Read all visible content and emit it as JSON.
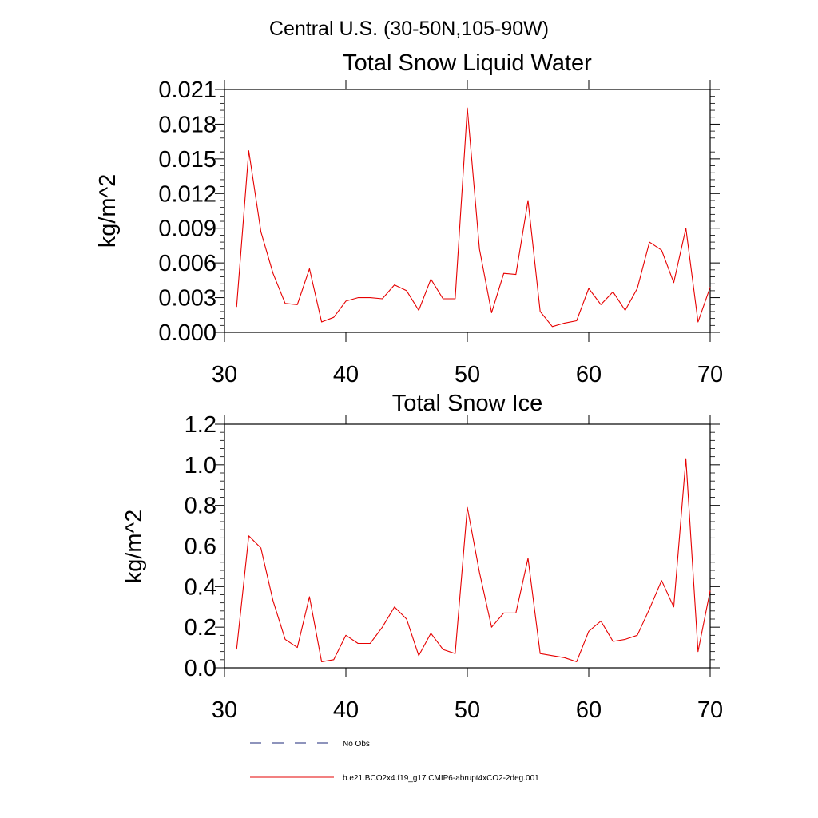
{
  "figure_title": "Central U.S. (30-50N,105-90W)",
  "legend": [
    {
      "label": "No Obs",
      "color": "#1e2a78",
      "dash": "dashed"
    },
    {
      "label": "b.e21.BCO2x4.f19_g17.CMIP6-abrupt4xCO2-2deg.001",
      "color": "#e60000",
      "dash": "solid"
    }
  ],
  "chart_data": [
    {
      "type": "line",
      "title": "Total Snow Liquid Water",
      "xlabel": "",
      "ylabel": "kg/m^2",
      "xlim": [
        30,
        70
      ],
      "ylim": [
        0,
        0.021
      ],
      "xticks": [
        "30",
        "40",
        "50",
        "60",
        "70"
      ],
      "xtick_values": [
        30,
        40,
        50,
        60,
        70
      ],
      "yticks": [
        "0.000",
        "0.003",
        "0.006",
        "0.009",
        "0.012",
        "0.015",
        "0.018",
        "0.021"
      ],
      "ytick_values": [
        0,
        0.003,
        0.006,
        0.009,
        0.012,
        0.015,
        0.018,
        0.021
      ],
      "series": [
        {
          "name": "b.e21.BCO2x4.f19_g17.CMIP6-abrupt4xCO2-2deg.001",
          "color": "#e60000",
          "x": [
            31,
            32,
            33,
            34,
            35,
            36,
            37,
            38,
            39,
            40,
            41,
            42,
            43,
            44,
            45,
            46,
            47,
            48,
            49,
            50,
            51,
            52,
            53,
            54,
            55,
            56,
            57,
            58,
            59,
            60,
            61,
            62,
            63,
            64,
            65,
            66,
            67,
            68,
            69,
            70
          ],
          "values": [
            0.0022,
            0.0157,
            0.0087,
            0.0051,
            0.0025,
            0.0024,
            0.0055,
            0.0009,
            0.0013,
            0.0027,
            0.003,
            0.003,
            0.0029,
            0.0041,
            0.0036,
            0.0019,
            0.0046,
            0.0029,
            0.0029,
            0.0194,
            0.0072,
            0.0017,
            0.0051,
            0.005,
            0.0114,
            0.0018,
            0.0005,
            0.0008,
            0.001,
            0.0038,
            0.0024,
            0.0035,
            0.0019,
            0.0038,
            0.0078,
            0.0071,
            0.0043,
            0.009,
            0.0009,
            0.0039
          ]
        }
      ]
    },
    {
      "type": "line",
      "title": "Total Snow Ice",
      "xlabel": "",
      "ylabel": "kg/m^2",
      "xlim": [
        30,
        70
      ],
      "ylim": [
        0,
        1.2
      ],
      "xticks": [
        "30",
        "40",
        "50",
        "60",
        "70"
      ],
      "xtick_values": [
        30,
        40,
        50,
        60,
        70
      ],
      "yticks": [
        "0.0",
        "0.2",
        "0.4",
        "0.6",
        "0.8",
        "1.0",
        "1.2"
      ],
      "ytick_values": [
        0,
        0.2,
        0.4,
        0.6,
        0.8,
        1.0,
        1.2
      ],
      "series": [
        {
          "name": "b.e21.BCO2x4.f19_g17.CMIP6-abrupt4xCO2-2deg.001",
          "color": "#e60000",
          "x": [
            31,
            32,
            33,
            34,
            35,
            36,
            37,
            38,
            39,
            40,
            41,
            42,
            43,
            44,
            45,
            46,
            47,
            48,
            49,
            50,
            51,
            52,
            53,
            54,
            55,
            56,
            57,
            58,
            59,
            60,
            61,
            62,
            63,
            64,
            65,
            66,
            67,
            68,
            69,
            70
          ],
          "values": [
            0.09,
            0.65,
            0.59,
            0.33,
            0.14,
            0.1,
            0.35,
            0.03,
            0.04,
            0.16,
            0.12,
            0.12,
            0.2,
            0.3,
            0.24,
            0.06,
            0.17,
            0.09,
            0.07,
            0.79,
            0.47,
            0.2,
            0.27,
            0.27,
            0.54,
            0.07,
            0.06,
            0.05,
            0.03,
            0.18,
            0.23,
            0.13,
            0.14,
            0.16,
            0.29,
            0.43,
            0.3,
            1.03,
            0.08,
            0.38
          ]
        }
      ]
    }
  ]
}
